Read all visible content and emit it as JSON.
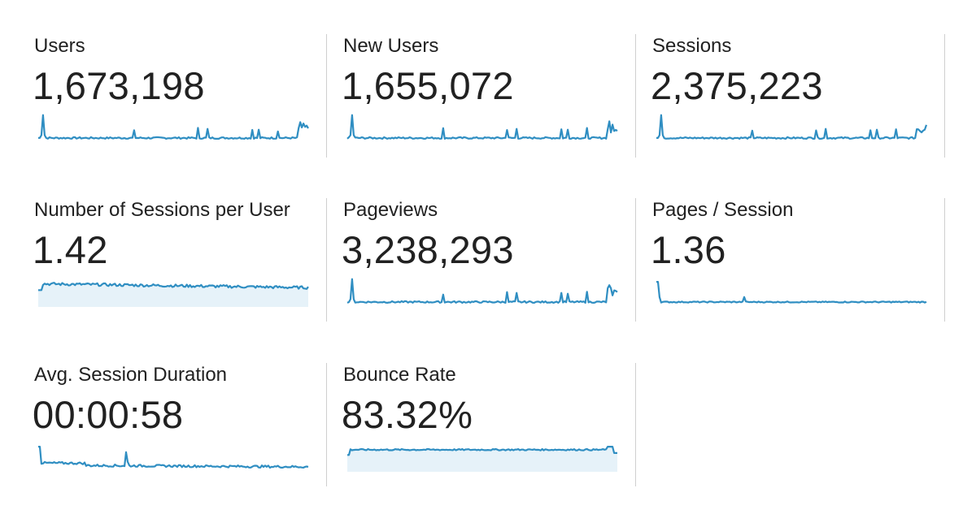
{
  "metrics": [
    {
      "id": "users",
      "label": "Users",
      "value": "1,673,198",
      "spark": "spike",
      "fill": false
    },
    {
      "id": "new-users",
      "label": "New Users",
      "value": "1,655,072",
      "spark": "spike",
      "fill": false
    },
    {
      "id": "sessions",
      "label": "Sessions",
      "value": "2,375,223",
      "spark": "spike",
      "fill": false
    },
    {
      "id": "sessions-per-user",
      "label": "Number of Sessions per User",
      "value": "1.42",
      "spark": "high",
      "fill": true
    },
    {
      "id": "pageviews",
      "label": "Pageviews",
      "value": "3,238,293",
      "spark": "spike",
      "fill": false
    },
    {
      "id": "pages-per-session",
      "label": "Pages / Session",
      "value": "1.36",
      "spark": "decay",
      "fill": false
    },
    {
      "id": "avg-session-duration",
      "label": "Avg. Session Duration",
      "value": "00:00:58",
      "spark": "decay-bump",
      "fill": false
    },
    {
      "id": "bounce-rate",
      "label": "Bounce Rate",
      "value": "83.32%",
      "spark": "flat-high",
      "fill": true
    }
  ],
  "colors": {
    "line": "#2f8ec2",
    "fill": "#e6f2f9",
    "divider": "#cfcfcf",
    "text": "#212121"
  }
}
